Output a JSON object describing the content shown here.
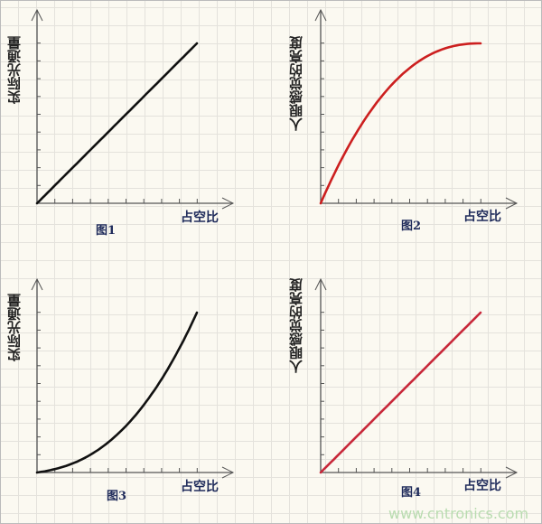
{
  "chart_data": [
    {
      "type": "line",
      "title": "图1",
      "xlabel": "占空比",
      "ylabel": "实际光通量",
      "curve": "linear",
      "color": "#111111"
    },
    {
      "type": "line",
      "title": "图2",
      "xlabel": "占空比",
      "ylabel": "人眼感觉的亮度",
      "curve": "concave",
      "color": "#cc1f1f"
    },
    {
      "type": "line",
      "title": "图3",
      "xlabel": "占空比",
      "ylabel": "实际光通量",
      "curve": "convex",
      "color": "#111111"
    },
    {
      "type": "line",
      "title": "图4",
      "xlabel": "占空比",
      "ylabel": "人眼感觉的亮度",
      "curve": "linear",
      "color": "#c8283a"
    }
  ],
  "watermark": "www.cntronics.com"
}
